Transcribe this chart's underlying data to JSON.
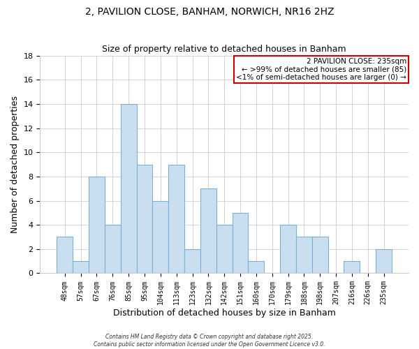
{
  "title": "2, PAVILION CLOSE, BANHAM, NORWICH, NR16 2HZ",
  "subtitle": "Size of property relative to detached houses in Banham",
  "xlabel": "Distribution of detached houses by size in Banham",
  "ylabel": "Number of detached properties",
  "bar_color": "#c9dff0",
  "bar_edgecolor": "#7bafd4",
  "categories": [
    "48sqm",
    "57sqm",
    "67sqm",
    "76sqm",
    "85sqm",
    "95sqm",
    "104sqm",
    "113sqm",
    "123sqm",
    "132sqm",
    "142sqm",
    "151sqm",
    "160sqm",
    "170sqm",
    "179sqm",
    "188sqm",
    "198sqm",
    "207sqm",
    "216sqm",
    "226sqm",
    "235sqm"
  ],
  "values": [
    3,
    1,
    8,
    4,
    14,
    9,
    6,
    9,
    2,
    7,
    4,
    5,
    1,
    0,
    4,
    3,
    3,
    0,
    1,
    0,
    2
  ],
  "ylim": [
    0,
    18
  ],
  "yticks": [
    0,
    2,
    4,
    6,
    8,
    10,
    12,
    14,
    16,
    18
  ],
  "highlight_index": 20,
  "annotation_title": "2 PAVILION CLOSE: 235sqm",
  "annotation_line1": "← >99% of detached houses are smaller (85)",
  "annotation_line2": "<1% of semi-detached houses are larger (0) →",
  "annotation_box_color": "#cc0000",
  "footnote1": "Contains HM Land Registry data © Crown copyright and database right 2025.",
  "footnote2": "Contains public sector information licensed under the Open Government Licence v3.0.",
  "background_color": "#ffffff",
  "grid_color": "#cccccc"
}
